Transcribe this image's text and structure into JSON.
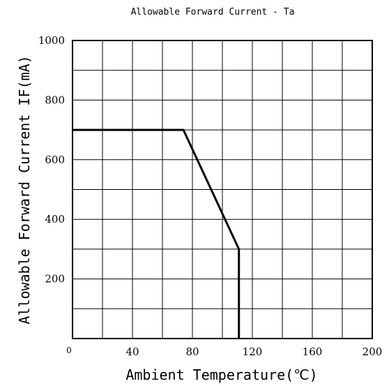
{
  "chart_data": {
    "type": "line",
    "title": "Allowable Forward Current - Ta",
    "xlabel": "Ambient Temperature(℃)",
    "ylabel": "Allowable Forward Current IF(mA)",
    "xlim": [
      0,
      200
    ],
    "ylim": [
      0,
      1000
    ],
    "grid": true,
    "x_ticks": [
      {
        "value": 0,
        "label": "0"
      },
      {
        "value": 40,
        "label": "40"
      },
      {
        "value": 80,
        "label": "80"
      },
      {
        "value": 120,
        "label": "120"
      },
      {
        "value": 160,
        "label": "160"
      },
      {
        "value": 200,
        "label": "200"
      }
    ],
    "y_ticks": [
      {
        "value": 200,
        "label": "200"
      },
      {
        "value": 400,
        "label": "400"
      },
      {
        "value": 600,
        "label": "600"
      },
      {
        "value": 800,
        "label": "800"
      },
      {
        "value": 1000,
        "label": "1000"
      }
    ],
    "series": [
      {
        "x": [
          0,
          74,
          111,
          111
        ],
        "y": [
          700,
          700,
          300,
          0
        ],
        "color": "#000000"
      }
    ]
  }
}
